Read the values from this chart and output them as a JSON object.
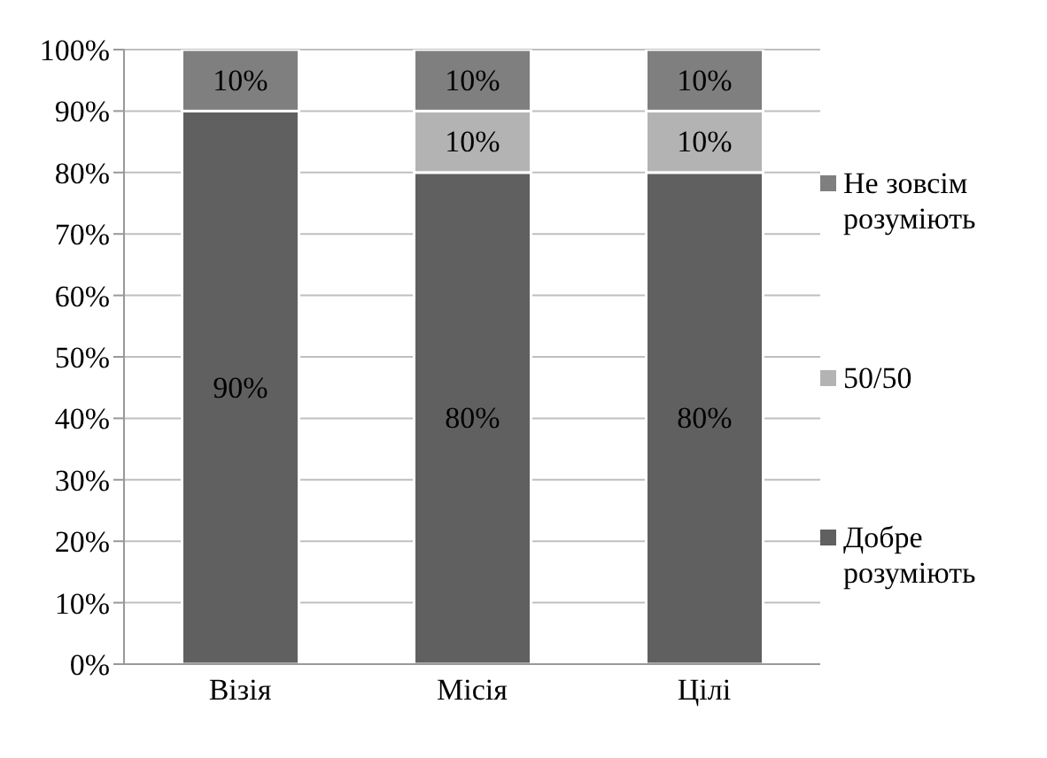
{
  "chart_data": {
    "type": "bar",
    "stacked": true,
    "categories": [
      "Візія",
      "Місія",
      "Цілі"
    ],
    "series": [
      {
        "name": "Добре розуміють",
        "color": "#606060",
        "values": [
          90,
          80,
          80
        ],
        "value_labels": [
          "90%",
          "80%",
          "80%"
        ]
      },
      {
        "name": "50/50",
        "color": "#b3b3b3",
        "values": [
          0,
          10,
          10
        ],
        "value_labels": [
          null,
          "10%",
          "10%"
        ]
      },
      {
        "name": "Не зовсім розуміють",
        "color": "#7f7f7f",
        "values": [
          10,
          10,
          10
        ],
        "value_labels": [
          "10%",
          "10%",
          "10%"
        ]
      }
    ],
    "ylim": [
      0,
      100
    ],
    "yticks": [
      {
        "value": 0,
        "label": "0%"
      },
      {
        "value": 10,
        "label": "10%"
      },
      {
        "value": 20,
        "label": "20%"
      },
      {
        "value": 30,
        "label": "30%"
      },
      {
        "value": 40,
        "label": "40%"
      },
      {
        "value": 50,
        "label": "50%"
      },
      {
        "value": 60,
        "label": "60%"
      },
      {
        "value": 70,
        "label": "70%"
      },
      {
        "value": 80,
        "label": "80%"
      },
      {
        "value": 90,
        "label": "90%"
      },
      {
        "value": 100,
        "label": "100%"
      }
    ],
    "grid": "y",
    "legend": "right"
  }
}
